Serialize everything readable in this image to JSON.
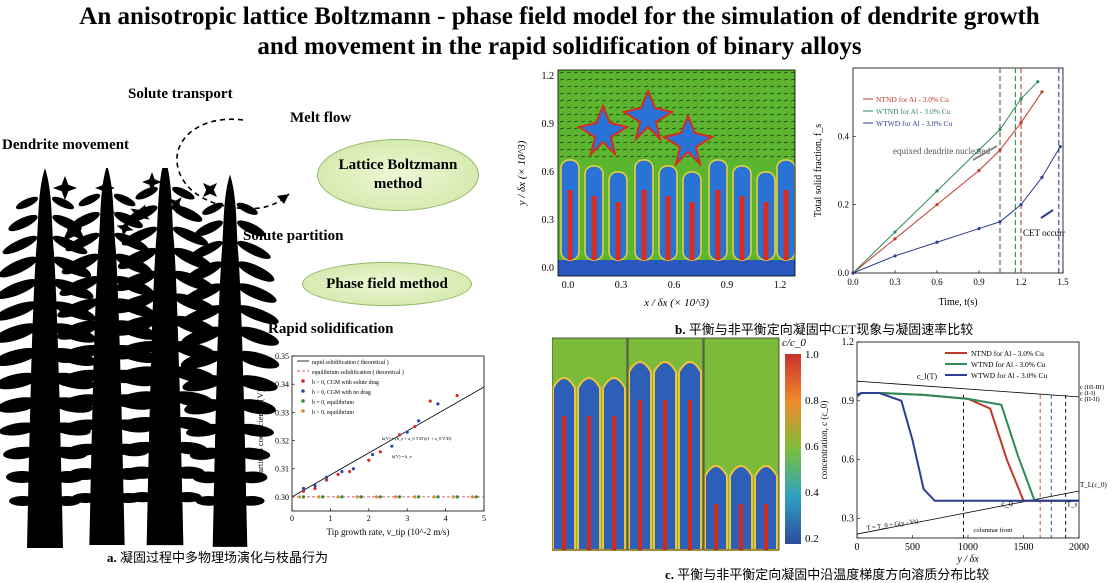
{
  "title": {
    "line1": "An anisotropic lattice Boltzmann - phase field model for the simulation of dendrite growth",
    "line2": "and movement in the rapid solidification of binary alloys"
  },
  "panel_a": {
    "solute_transport": "Solute transport",
    "melt_flow": "Melt flow",
    "dendrite_movement": "Dendrite movement",
    "lbm": "Lattice Boltzmann method",
    "solute_partition": "Solute partition",
    "phase_field": "Phase field method",
    "rapid_solidification": "Rapid solidification",
    "caption_prefix": "a.",
    "caption_text": "凝固过程中多物理场演化与枝晶行为"
  },
  "panel_b": {
    "caption_prefix": "b.",
    "caption_text": "平衡与非平衡定向凝固中CET现象与凝固速率比较"
  },
  "panel_c": {
    "caption_prefix": "c.",
    "caption_text": "平衡与非平衡定向凝固中沿温度梯度方向溶质分布比较"
  },
  "chart_data": [
    {
      "id": "partition_coefficient",
      "type": "scatter",
      "xlabel": "Tip growth rate, v_tip (10^-2 m/s)",
      "ylabel": "Partition coefficient, k(V)",
      "xlim": [
        0,
        5
      ],
      "ylim": [
        0.295,
        0.35
      ],
      "xticks": [
        "0",
        "1",
        "2",
        "3",
        "4",
        "5"
      ],
      "yticks": [
        "0.30",
        "0.31",
        "0.32",
        "0.33",
        "0.34",
        "0.35"
      ],
      "legend": [
        "rapid solidification ( theoretical )",
        "equilibrium solidification ( theoretical )",
        "b > 0, CGM with solute drag",
        "b > 0, CGM with no drag",
        "b = 0, equilibrium",
        "b > 0, equilibrium"
      ],
      "annotation_1": "k(V) = (k_e + a_0 V/D)/(1 + a_0 V/D)",
      "annotation_2": "k(V) = k_e",
      "series": [
        {
          "name": "rapid solidification ( theoretical )",
          "x": [
            0,
            5
          ],
          "y": [
            0.3,
            0.339
          ],
          "color": "#000000"
        },
        {
          "name": "equilibrium solidification ( theoretical )",
          "x": [
            0,
            5
          ],
          "y": [
            0.3,
            0.3
          ],
          "color": "#cc3333"
        },
        {
          "name": "b > 0, CGM with solute drag",
          "x": [
            0.3,
            0.6,
            0.9,
            1.2,
            1.5,
            2.0,
            2.3,
            2.8,
            3.2,
            3.6,
            4.3
          ],
          "y": [
            0.302,
            0.303,
            0.306,
            0.308,
            0.309,
            0.313,
            0.316,
            0.322,
            0.325,
            0.334,
            0.336
          ],
          "color": "#d22b2b"
        },
        {
          "name": "b > 0, CGM with no drag",
          "x": [
            0.3,
            0.6,
            0.9,
            1.3,
            1.6,
            2.1,
            2.6,
            3.0,
            3.3,
            3.8
          ],
          "y": [
            0.303,
            0.304,
            0.307,
            0.309,
            0.31,
            0.315,
            0.318,
            0.323,
            0.327,
            0.333
          ],
          "color": "#2b48b0"
        },
        {
          "name": "b = 0, equilibrium",
          "x": [
            0.3,
            0.8,
            1.3,
            1.8,
            2.3,
            2.8,
            3.3,
            3.8,
            4.3,
            4.8
          ],
          "y": [
            0.3,
            0.3,
            0.3,
            0.3,
            0.3,
            0.3,
            0.3,
            0.3,
            0.3,
            0.3
          ],
          "color": "#2e8b3e"
        },
        {
          "name": "b > 0, equilibrium",
          "x": [
            0.2,
            0.7,
            1.2,
            1.7,
            2.2,
            2.7,
            3.2,
            3.7,
            4.2,
            4.7
          ],
          "y": [
            0.3,
            0.3,
            0.3,
            0.3,
            0.3,
            0.3,
            0.3,
            0.3,
            0.3,
            0.3
          ],
          "color": "#e08a2c"
        }
      ]
    },
    {
      "id": "solid_fraction",
      "type": "line",
      "xlabel": "Time, t(s)",
      "ylabel": "Total solid fraction, f_s",
      "xlim": [
        0,
        1.5
      ],
      "ylim": [
        0,
        0.6
      ],
      "xticks": [
        "0.0",
        "0.3",
        "0.6",
        "0.9",
        "1.2",
        "1.5"
      ],
      "yticks": [
        "0.0",
        "0.2",
        "0.4"
      ],
      "annotation_nucleated": "equixed dendrite nucleated",
      "annotation_cet": "CET occurr",
      "series": [
        {
          "name": "NTND for Al - 3.0% Cu",
          "x": [
            0,
            0.3,
            0.6,
            0.9,
            1.05,
            1.2,
            1.35
          ],
          "y": [
            0,
            0.1,
            0.2,
            0.3,
            0.36,
            0.44,
            0.53
          ],
          "color": "#c0392b"
        },
        {
          "name": "WTND for Al - 3.0% Cu",
          "x": [
            0,
            0.3,
            0.6,
            0.9,
            1.05,
            1.2,
            1.32
          ],
          "y": [
            0,
            0.12,
            0.24,
            0.36,
            0.42,
            0.51,
            0.56
          ],
          "color": "#2e8b57"
        },
        {
          "name": "WTWD for Al - 3.0% Cu",
          "x": [
            0,
            0.3,
            0.6,
            0.9,
            1.05,
            1.2,
            1.35,
            1.48
          ],
          "y": [
            0,
            0.05,
            0.09,
            0.13,
            0.15,
            0.2,
            0.28,
            0.37
          ],
          "color": "#2c3e8f"
        }
      ]
    },
    {
      "id": "concentration_profile",
      "type": "line",
      "xlabel": "y / δx",
      "ylabel": "concentration, c (c_0)",
      "xlim": [
        0,
        2000
      ],
      "ylim": [
        0.2,
        1.2
      ],
      "xticks": [
        "0",
        "500",
        "1000",
        "1500",
        "2000"
      ],
      "yticks": [
        "0.3",
        "0.6",
        "0.9",
        "1.2"
      ],
      "annotations": [
        "c_l(T)",
        "c (III-III)",
        "c (I-I)",
        "c (II-II)",
        "c_0",
        "T_L(c_0)",
        "T_s",
        "T = T_0 + G(y - Vt)",
        "columnar front"
      ],
      "series": [
        {
          "name": "NTND for Al - 3.0% Cu",
          "x": [
            0,
            40,
            200,
            600,
            1000,
            1200,
            1350,
            1500,
            2000
          ],
          "y": [
            0.93,
            0.94,
            0.94,
            0.93,
            0.91,
            0.86,
            0.6,
            0.39,
            0.39
          ],
          "color": "#c0392b"
        },
        {
          "name": "WTND for Al - 3.0% Cu",
          "x": [
            0,
            40,
            200,
            600,
            1000,
            1300,
            1450,
            1600,
            2000
          ],
          "y": [
            0.92,
            0.94,
            0.94,
            0.93,
            0.91,
            0.88,
            0.62,
            0.39,
            0.39
          ],
          "color": "#2e8b57"
        },
        {
          "name": "WTWD for Al - 3.0% Cu",
          "x": [
            0,
            40,
            200,
            400,
            500,
            600,
            700,
            2000
          ],
          "y": [
            0.93,
            0.94,
            0.94,
            0.9,
            0.7,
            0.45,
            0.39,
            0.39
          ],
          "color": "#2c3e8f"
        }
      ]
    },
    {
      "id": "colorbar_c",
      "type": "heatmap",
      "label": "c/c_0",
      "ticks": [
        "1.0",
        "0.8",
        "0.6",
        "0.4",
        "0.2"
      ]
    },
    {
      "id": "flow_field",
      "type": "heatmap",
      "xlabel": "x / δx (× 10^3)",
      "ylabel": "y / δx (× 10^3)",
      "xticks": [
        "0.0",
        "0.3",
        "0.6",
        "0.9",
        "1.2"
      ],
      "yticks": [
        "0.0",
        "0.3",
        "0.6",
        "0.9",
        "1.2"
      ]
    }
  ]
}
